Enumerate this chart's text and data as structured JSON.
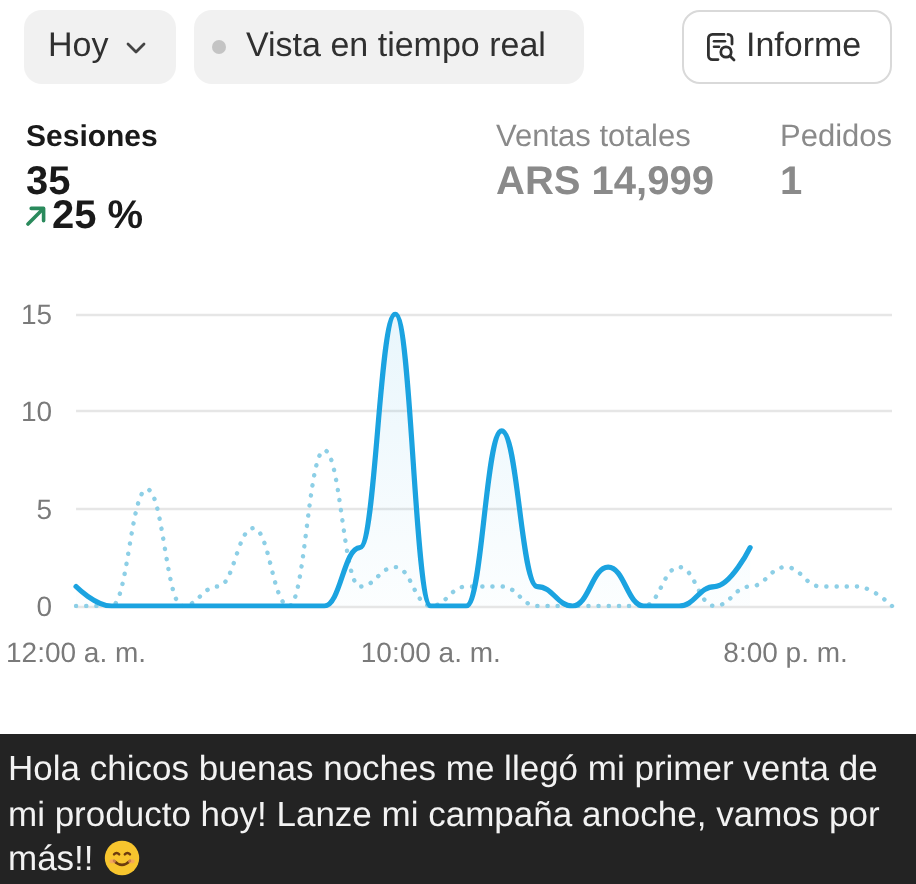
{
  "chart_data": [
    {
      "type": "other",
      "annotations": [
        "Hoy",
        "Vista en tiempo real",
        "Informe",
        "Sesiones",
        "35",
        "25 %",
        "Ventas totales",
        "ARS 14,999",
        "Pedidos",
        "1"
      ]
    },
    {
      "type": "line",
      "categories": [
        "12:00 a. m.",
        null,
        null,
        null,
        null,
        null,
        null,
        null,
        null,
        null,
        "10:00 a. m.",
        null,
        null,
        null,
        null,
        null,
        null,
        null,
        null,
        null,
        "8:00 p. m.",
        null,
        null,
        null
      ],
      "series": [
        {
          "type": "area",
          "color": "#1ba3e0",
          "line_style": "solid",
          "values": [
            1,
            0,
            0,
            0,
            0,
            0,
            0,
            0,
            3,
            15,
            0,
            0,
            9,
            1,
            0,
            2,
            0,
            0,
            1,
            3,
            null,
            null,
            null,
            null
          ]
        },
        {
          "color": "#8dcfe6",
          "line_style": "dotted",
          "values": [
            0,
            0,
            6,
            0,
            1,
            4,
            0,
            8,
            1,
            2,
            0,
            1,
            1,
            0,
            0,
            0,
            0,
            2,
            0,
            1,
            2,
            1,
            1,
            0
          ]
        }
      ],
      "ylim": [
        0,
        15
      ],
      "yticks": [
        0,
        5,
        10,
        15
      ],
      "grid": "y",
      "marker": "none",
      "annotations": [
        "Hola chicos buenas noches me llegó mi primer venta de mi producto hoy! Lanze mi campaña anoche, vamos por más!!"
      ]
    }
  ]
}
